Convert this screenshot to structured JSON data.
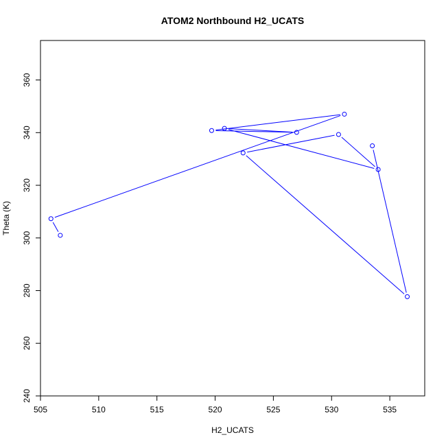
{
  "chart_data": {
    "type": "line",
    "title": "ATOM2 Northbound H2_UCATS",
    "xlabel": "H2_UCATS",
    "ylabel": "Theta (K)",
    "xlim": [
      505,
      538
    ],
    "ylim": [
      240,
      375
    ],
    "x_ticks": [
      505,
      510,
      515,
      520,
      525,
      530,
      535
    ],
    "y_ticks": [
      240,
      260,
      280,
      300,
      320,
      340,
      360
    ],
    "x_tick_labels": [
      "505",
      "510",
      "515",
      "520",
      "525",
      "530",
      "535"
    ],
    "y_tick_labels": [
      "240",
      "260",
      "280",
      "300",
      "320",
      "340",
      "360"
    ],
    "grid": false,
    "legend": "none",
    "markers": "open-circle",
    "series": [
      {
        "color": "#0000ff",
        "points": [
          {
            "x": 506.7,
            "y": 301.0
          },
          {
            "x": 505.9,
            "y": 307.3
          },
          {
            "x": 531.1,
            "y": 347.0
          },
          {
            "x": 519.7,
            "y": 340.8
          },
          {
            "x": 527.0,
            "y": 340.1
          },
          {
            "x": 520.8,
            "y": 341.6
          },
          {
            "x": 534.0,
            "y": 326.0
          },
          {
            "x": 530.6,
            "y": 339.3
          },
          {
            "x": 522.4,
            "y": 332.3
          },
          {
            "x": 536.5,
            "y": 277.7
          },
          {
            "x": 533.5,
            "y": 335.0
          }
        ]
      }
    ]
  }
}
